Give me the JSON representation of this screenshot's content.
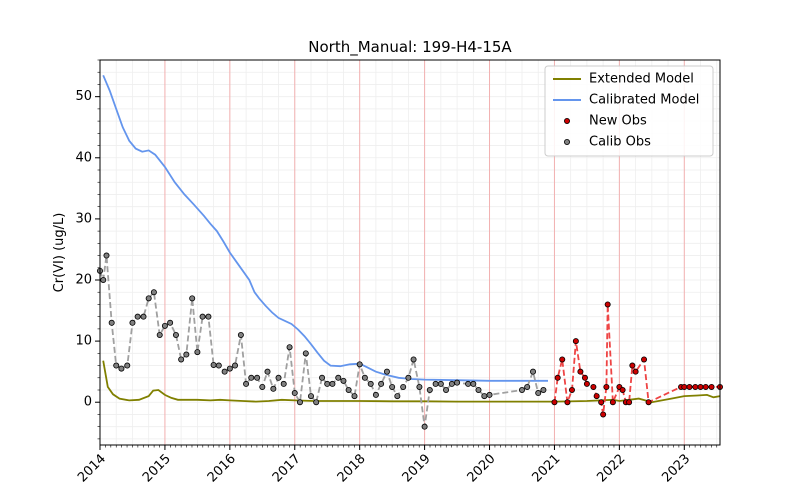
{
  "colors": {
    "extended": "#808000",
    "calibrated": "#6495ed",
    "new_obs": "#cc0000",
    "new_obs_line": "#ee4444",
    "calib_obs_fill": "#808080",
    "calib_obs_line": "#a0a0a0",
    "year_lines": "#f2b0b0",
    "minor_grid": "#eeeeee"
  },
  "chart_data": {
    "type": "line",
    "title": "North_Manual: 199-H4-15A",
    "xlabel": "",
    "ylabel": "Cr(VI) (ug/L)",
    "xlim": [
      2014.0,
      2023.55
    ],
    "ylim": [
      -7,
      56
    ],
    "x_ticks": [
      2014,
      2015,
      2016,
      2017,
      2018,
      2019,
      2020,
      2021,
      2022,
      2023
    ],
    "x_tick_labels": [
      "2014",
      "2015",
      "2016",
      "2017",
      "2018",
      "2019",
      "2020",
      "2021",
      "2022",
      "2023"
    ],
    "y_ticks": [
      0,
      10,
      20,
      30,
      40,
      50
    ],
    "y_tick_labels": [
      "0",
      "10",
      "20",
      "30",
      "40",
      "50"
    ],
    "grid": "minor + yearly vertical lines",
    "legend": {
      "position": "top-right",
      "entries": [
        "Extended Model",
        "Calibrated Model",
        "New Obs",
        "Calib Obs"
      ]
    },
    "series": [
      {
        "name": "Extended Model",
        "kind": "line",
        "points": [
          [
            2014.05,
            6.8
          ],
          [
            2014.12,
            2.5
          ],
          [
            2014.2,
            1.3
          ],
          [
            2014.3,
            0.6
          ],
          [
            2014.45,
            0.3
          ],
          [
            2014.6,
            0.4
          ],
          [
            2014.75,
            1.0
          ],
          [
            2014.82,
            1.9
          ],
          [
            2014.9,
            2.0
          ],
          [
            2015.0,
            1.2
          ],
          [
            2015.1,
            0.7
          ],
          [
            2015.2,
            0.4
          ],
          [
            2015.3,
            0.4
          ],
          [
            2015.5,
            0.4
          ],
          [
            2015.7,
            0.3
          ],
          [
            2015.85,
            0.4
          ],
          [
            2016.0,
            0.3
          ],
          [
            2016.2,
            0.2
          ],
          [
            2016.4,
            0.1
          ],
          [
            2016.6,
            0.2
          ],
          [
            2016.8,
            0.4
          ],
          [
            2017.0,
            0.3
          ],
          [
            2017.3,
            0.2
          ],
          [
            2017.6,
            0.2
          ],
          [
            2018.0,
            0.2
          ],
          [
            2018.5,
            0.15
          ],
          [
            2019.0,
            0.15
          ],
          [
            2019.5,
            0.1
          ],
          [
            2020.0,
            0.1
          ],
          [
            2020.5,
            0.1
          ],
          [
            2021.0,
            0.1
          ],
          [
            2021.5,
            0.2
          ],
          [
            2021.9,
            0.4
          ],
          [
            2022.0,
            0.2
          ],
          [
            2022.3,
            0.6
          ],
          [
            2022.5,
            0.0
          ],
          [
            2022.8,
            0.6
          ],
          [
            2023.0,
            1.0
          ],
          [
            2023.2,
            1.1
          ],
          [
            2023.35,
            1.2
          ],
          [
            2023.45,
            0.8
          ],
          [
            2023.55,
            1.0
          ]
        ]
      },
      {
        "name": "Calibrated Model",
        "kind": "line",
        "points": [
          [
            2014.05,
            53.5
          ],
          [
            2014.15,
            51.0
          ],
          [
            2014.25,
            48.0
          ],
          [
            2014.35,
            45.0
          ],
          [
            2014.45,
            42.8
          ],
          [
            2014.55,
            41.5
          ],
          [
            2014.65,
            41.0
          ],
          [
            2014.75,
            41.2
          ],
          [
            2014.85,
            40.5
          ],
          [
            2015.0,
            38.5
          ],
          [
            2015.15,
            36.0
          ],
          [
            2015.3,
            34.0
          ],
          [
            2015.45,
            32.3
          ],
          [
            2015.6,
            30.5
          ],
          [
            2015.7,
            29.2
          ],
          [
            2015.8,
            28.0
          ],
          [
            2015.9,
            26.3
          ],
          [
            2016.0,
            24.5
          ],
          [
            2016.1,
            23.0
          ],
          [
            2016.2,
            21.5
          ],
          [
            2016.3,
            20.0
          ],
          [
            2016.38,
            18.0
          ],
          [
            2016.45,
            17.0
          ],
          [
            2016.55,
            15.8
          ],
          [
            2016.65,
            14.7
          ],
          [
            2016.75,
            13.8
          ],
          [
            2016.85,
            13.3
          ],
          [
            2016.95,
            12.8
          ],
          [
            2017.05,
            11.9
          ],
          [
            2017.15,
            10.8
          ],
          [
            2017.25,
            9.5
          ],
          [
            2017.35,
            8.1
          ],
          [
            2017.45,
            6.8
          ],
          [
            2017.55,
            6.0
          ],
          [
            2017.7,
            5.9
          ],
          [
            2017.85,
            6.2
          ],
          [
            2018.0,
            6.3
          ],
          [
            2018.1,
            5.8
          ],
          [
            2018.25,
            5.0
          ],
          [
            2018.4,
            4.5
          ],
          [
            2018.6,
            4.0
          ],
          [
            2018.8,
            3.8
          ],
          [
            2019.0,
            3.7
          ],
          [
            2019.5,
            3.6
          ],
          [
            2020.0,
            3.5
          ],
          [
            2020.5,
            3.5
          ],
          [
            2020.9,
            3.5
          ]
        ]
      },
      {
        "name": "Calib Obs",
        "kind": "obs",
        "points": [
          [
            2014.0,
            21.5
          ],
          [
            2014.05,
            20.0
          ],
          [
            2014.1,
            24.0
          ],
          [
            2014.18,
            13.0
          ],
          [
            2014.25,
            6.0
          ],
          [
            2014.33,
            5.5
          ],
          [
            2014.42,
            6.0
          ],
          [
            2014.5,
            13.0
          ],
          [
            2014.58,
            14.0
          ],
          [
            2014.67,
            14.0
          ],
          [
            2014.75,
            17.0
          ],
          [
            2014.83,
            18.0
          ],
          [
            2014.92,
            11.0
          ],
          [
            2015.0,
            12.5
          ],
          [
            2015.08,
            13.0
          ],
          [
            2015.17,
            11.0
          ],
          [
            2015.25,
            7.0
          ],
          [
            2015.33,
            7.8
          ],
          [
            2015.42,
            17.0
          ],
          [
            2015.5,
            8.2
          ],
          [
            2015.58,
            14.0
          ],
          [
            2015.67,
            14.0
          ],
          [
            2015.75,
            6.1
          ],
          [
            2015.83,
            6.0
          ],
          [
            2015.92,
            5.0
          ],
          [
            2016.0,
            5.5
          ],
          [
            2016.08,
            6.0
          ],
          [
            2016.17,
            11.0
          ],
          [
            2016.25,
            3.0
          ],
          [
            2016.33,
            4.0
          ],
          [
            2016.42,
            4.0
          ],
          [
            2016.5,
            2.5
          ],
          [
            2016.58,
            5.0
          ],
          [
            2016.67,
            2.2
          ],
          [
            2016.75,
            4.0
          ],
          [
            2016.83,
            3.0
          ],
          [
            2016.92,
            9.0
          ],
          [
            2017.0,
            1.5
          ],
          [
            2017.08,
            0.0
          ],
          [
            2017.17,
            8.0
          ],
          [
            2017.25,
            1.0
          ],
          [
            2017.33,
            0.0
          ],
          [
            2017.42,
            4.0
          ],
          [
            2017.5,
            3.0
          ],
          [
            2017.58,
            3.0
          ],
          [
            2017.67,
            4.0
          ],
          [
            2017.75,
            3.5
          ],
          [
            2017.83,
            2.0
          ],
          [
            2017.92,
            1.0
          ],
          [
            2018.0,
            6.2
          ],
          [
            2018.08,
            4.0
          ],
          [
            2018.17,
            3.0
          ],
          [
            2018.25,
            1.2
          ],
          [
            2018.33,
            3.0
          ],
          [
            2018.42,
            5.0
          ],
          [
            2018.5,
            2.5
          ],
          [
            2018.58,
            1.0
          ],
          [
            2018.67,
            2.5
          ],
          [
            2018.75,
            4.0
          ],
          [
            2018.83,
            7.0
          ],
          [
            2018.92,
            2.5
          ],
          [
            2019.0,
            -4.0
          ],
          [
            2019.08,
            2.0
          ],
          [
            2019.17,
            3.0
          ],
          [
            2019.25,
            3.0
          ],
          [
            2019.33,
            2.0
          ],
          [
            2019.42,
            3.0
          ],
          [
            2019.5,
            3.2
          ],
          [
            2019.67,
            3.0
          ],
          [
            2019.75,
            3.0
          ],
          [
            2019.83,
            2.0
          ],
          [
            2019.92,
            1.0
          ],
          [
            2020.0,
            1.2
          ],
          [
            2020.5,
            2.0
          ],
          [
            2020.58,
            2.5
          ],
          [
            2020.67,
            5.0
          ],
          [
            2020.75,
            1.5
          ],
          [
            2020.83,
            2.0
          ]
        ]
      },
      {
        "name": "New Obs",
        "kind": "obs",
        "points": [
          [
            2021.0,
            0.0
          ],
          [
            2021.05,
            4.0
          ],
          [
            2021.12,
            7.0
          ],
          [
            2021.2,
            0.0
          ],
          [
            2021.27,
            2.0
          ],
          [
            2021.33,
            10.0
          ],
          [
            2021.4,
            5.0
          ],
          [
            2021.47,
            4.0
          ],
          [
            2021.5,
            3.0
          ],
          [
            2021.6,
            2.5
          ],
          [
            2021.65,
            1.0
          ],
          [
            2021.72,
            0.0
          ],
          [
            2021.75,
            -2.0
          ],
          [
            2021.8,
            2.5
          ],
          [
            2021.82,
            16.0
          ],
          [
            2021.9,
            0.0
          ],
          [
            2022.0,
            2.5
          ],
          [
            2022.05,
            2.0
          ],
          [
            2022.1,
            0.0
          ],
          [
            2022.15,
            0.0
          ],
          [
            2022.2,
            6.0
          ],
          [
            2022.25,
            5.0
          ],
          [
            2022.38,
            7.0
          ],
          [
            2022.45,
            0.0
          ],
          [
            2022.95,
            2.5
          ],
          [
            2023.0,
            2.5
          ],
          [
            2023.08,
            2.5
          ],
          [
            2023.17,
            2.5
          ],
          [
            2023.25,
            2.5
          ],
          [
            2023.33,
            2.5
          ],
          [
            2023.42,
            2.5
          ],
          [
            2023.55,
            2.5
          ]
        ]
      }
    ]
  }
}
